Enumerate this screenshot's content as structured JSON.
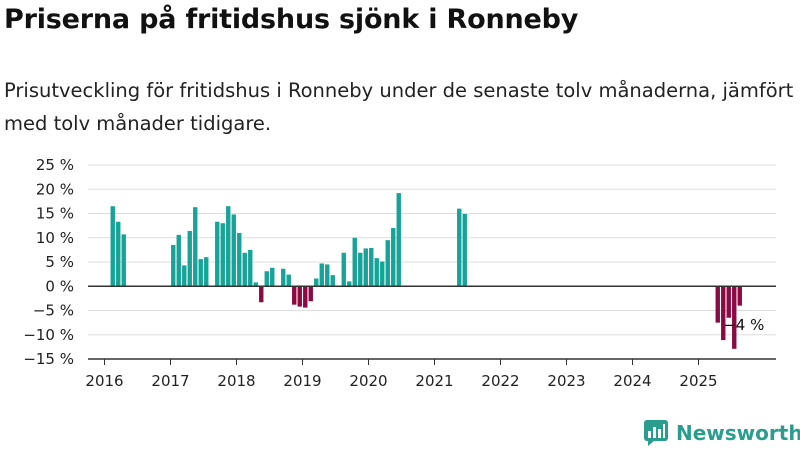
{
  "title": "Priserna på fritidshus sjönk i Ronneby",
  "subtitle": "Prisutveckling för fritidshus i Ronneby under de senaste tolv månaderna, jämfört med tolv månader tidigare.",
  "brand": "Newsworthy",
  "colors": {
    "positive": "#17a398",
    "negative": "#8c0a43",
    "brand": "#2a9d8f",
    "grid": "#dddddd"
  },
  "chart_data": {
    "type": "bar",
    "ylim": [
      -15,
      25
    ],
    "yticks": [
      25,
      20,
      15,
      10,
      5,
      0,
      -5,
      -10,
      -15
    ],
    "ytick_labels": [
      "25 %",
      "20 %",
      "15 %",
      "10 %",
      "5 %",
      "0 %",
      "−5 %",
      "−10 %",
      "−15 %"
    ],
    "xticks": [
      "2016",
      "2017",
      "2018",
      "2019",
      "2020",
      "2021",
      "2022",
      "2023",
      "2024",
      "2025"
    ],
    "x_start": "2015-10",
    "grid": true,
    "annotation": {
      "text": "−4 %",
      "month": "2025-08"
    },
    "values": [
      {
        "month": "2016-02",
        "value": 16.5
      },
      {
        "month": "2016-03",
        "value": 13.3
      },
      {
        "month": "2016-04",
        "value": 10.7
      },
      {
        "month": "2017-01",
        "value": 8.5
      },
      {
        "month": "2017-02",
        "value": 10.6
      },
      {
        "month": "2017-03",
        "value": 4.3
      },
      {
        "month": "2017-04",
        "value": 11.4
      },
      {
        "month": "2017-05",
        "value": 16.3
      },
      {
        "month": "2017-06",
        "value": 5.6
      },
      {
        "month": "2017-07",
        "value": 6.0
      },
      {
        "month": "2017-09",
        "value": 13.3
      },
      {
        "month": "2017-10",
        "value": 13.0
      },
      {
        "month": "2017-11",
        "value": 16.5
      },
      {
        "month": "2017-12",
        "value": 14.8
      },
      {
        "month": "2018-01",
        "value": 11.0
      },
      {
        "month": "2018-02",
        "value": 6.9
      },
      {
        "month": "2018-03",
        "value": 7.5
      },
      {
        "month": "2018-04",
        "value": 0.8
      },
      {
        "month": "2018-05",
        "value": -3.3
      },
      {
        "month": "2018-06",
        "value": 3.1
      },
      {
        "month": "2018-07",
        "value": 3.8
      },
      {
        "month": "2018-09",
        "value": 3.6
      },
      {
        "month": "2018-10",
        "value": 2.4
      },
      {
        "month": "2018-11",
        "value": -3.8
      },
      {
        "month": "2018-12",
        "value": -4.2
      },
      {
        "month": "2019-01",
        "value": -4.4
      },
      {
        "month": "2019-02",
        "value": -3.1
      },
      {
        "month": "2019-03",
        "value": 1.6
      },
      {
        "month": "2019-04",
        "value": 4.7
      },
      {
        "month": "2019-05",
        "value": 4.5
      },
      {
        "month": "2019-06",
        "value": 2.3
      },
      {
        "month": "2019-08",
        "value": 6.9
      },
      {
        "month": "2019-09",
        "value": 1.0
      },
      {
        "month": "2019-10",
        "value": 10.0
      },
      {
        "month": "2019-11",
        "value": 6.9
      },
      {
        "month": "2019-12",
        "value": 7.8
      },
      {
        "month": "2020-01",
        "value": 7.9
      },
      {
        "month": "2020-02",
        "value": 5.8
      },
      {
        "month": "2020-03",
        "value": 5.1
      },
      {
        "month": "2020-04",
        "value": 9.5
      },
      {
        "month": "2020-05",
        "value": 12.0
      },
      {
        "month": "2020-06",
        "value": 19.2
      },
      {
        "month": "2021-05",
        "value": 16.0
      },
      {
        "month": "2021-06",
        "value": 14.9
      },
      {
        "month": "2025-04",
        "value": -7.5
      },
      {
        "month": "2025-05",
        "value": -11.1
      },
      {
        "month": "2025-06",
        "value": -6.5
      },
      {
        "month": "2025-07",
        "value": -12.9
      },
      {
        "month": "2025-08",
        "value": -4.0
      }
    ]
  }
}
